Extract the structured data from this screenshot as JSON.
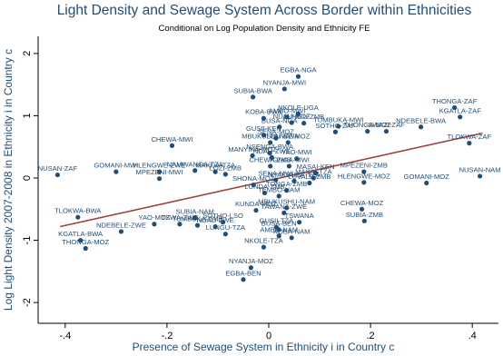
{
  "chart_data": {
    "type": "scatter",
    "title": "Light Density and Sewage System Across Border within Ethnicities",
    "subtitle": "Conditional on Log Population Density and Ethnicity FE",
    "xlabel": "Presence of Sewage System in Ethnicity i in Country c",
    "ylabel": "Log Light Density 2007-2008 in Ethnicity i in Country c",
    "xlim": [
      -0.43,
      0.43
    ],
    "ylim": [
      -2.1,
      2.1
    ],
    "xticks": [
      -0.4,
      -0.2,
      0,
      0.2,
      0.4
    ],
    "xtick_labels": [
      "-.4",
      "-.2",
      "0",
      ".2",
      ".4"
    ],
    "yticks": [
      -2,
      -1,
      0,
      1,
      2
    ],
    "ytick_labels": [
      "-2",
      "-1",
      "0",
      "1",
      "2"
    ],
    "grid": false,
    "colors": {
      "title": "#1f4e79",
      "points": "#1f4e79",
      "fit_line": "#a0413c"
    },
    "fit_line": {
      "x": [
        -0.41,
        0.42
      ],
      "y": [
        -0.78,
        0.72
      ]
    },
    "points": [
      {
        "label": "EGBA-NGA",
        "x": 0.058,
        "y": 1.63
      },
      {
        "label": "NYANJA-MWI",
        "x": 0.031,
        "y": 1.43
      },
      {
        "label": "SUBIA-BWA",
        "x": -0.031,
        "y": 1.3
      },
      {
        "label": "NKOLE-UGA",
        "x": 0.058,
        "y": 1.03
      },
      {
        "label": "AMBO-MWI",
        "x": 0.036,
        "y": 0.98
      },
      {
        "label": "KOBA-BWA",
        "x": -0.01,
        "y": 0.96
      },
      {
        "label": "LUNGU-ZMB",
        "x": 0.069,
        "y": 0.88
      },
      {
        "label": "NDAU-MOZ",
        "x": 0.045,
        "y": 0.89
      },
      {
        "label": "BUSA-NGA",
        "x": 0.021,
        "y": 0.82
      },
      {
        "label": "TUMBUKA-MWI",
        "x": 0.137,
        "y": 0.83
      },
      {
        "label": "THONGA-MOZ",
        "x": 0.194,
        "y": 0.75
      },
      {
        "label": "SWAZI-ZAF",
        "x": 0.231,
        "y": 0.75
      },
      {
        "label": "SOTHO-ZAF",
        "x": 0.131,
        "y": 0.74
      },
      {
        "label": "NDEBELE-BWA",
        "x": 0.299,
        "y": 0.82
      },
      {
        "label": "THONGA-ZAF",
        "x": 0.365,
        "y": 1.13
      },
      {
        "label": "KGATLA-ZAF",
        "x": 0.376,
        "y": 0.98
      },
      {
        "label": "TLOKWA-ZAF",
        "x": 0.394,
        "y": 0.56
      },
      {
        "label": "GUSII-KEN",
        "x": -0.01,
        "y": 0.69
      },
      {
        "label": "SENA-MOZ",
        "x": 0.014,
        "y": 0.64
      },
      {
        "label": "MBUKUSHU-BWA",
        "x": 0.003,
        "y": 0.57
      },
      {
        "label": "LOMWE-MOZ",
        "x": 0.038,
        "y": 0.57
      },
      {
        "label": "CHEWA-MWI",
        "x": -0.19,
        "y": 0.52
      },
      {
        "label": "NSENGA-BWA",
        "x": 0.002,
        "y": 0.4
      },
      {
        "label": "MANYIKA-MOZ",
        "x": -0.032,
        "y": 0.36
      },
      {
        "label": "NDAU-ZWE",
        "x": 0.006,
        "y": 0.33
      },
      {
        "label": "YAO-MWI",
        "x": 0.055,
        "y": 0.31
      },
      {
        "label": "NUSAN-ZAF",
        "x": -0.415,
        "y": 0.05
      },
      {
        "label": "GOMANI-MWI",
        "x": -0.3,
        "y": 0.1
      },
      {
        "label": "HLENGWE-ZWE",
        "x": -0.215,
        "y": 0.1
      },
      {
        "label": "NAMWANGA-TZA",
        "x": -0.145,
        "y": 0.12
      },
      {
        "label": "MAKUA-TZA",
        "x": -0.105,
        "y": 0.1
      },
      {
        "label": "LOZI-ZMB",
        "x": -0.085,
        "y": 0.06
      },
      {
        "label": "CHEWA-ZMB",
        "x": 0.003,
        "y": 0.19
      },
      {
        "label": "TONGA-MWI",
        "x": 0.04,
        "y": 0.19
      },
      {
        "label": "MPEZENI-MWI",
        "x": -0.215,
        "y": -0.01
      },
      {
        "label": "MPEZENI-ZMB",
        "x": 0.187,
        "y": 0.1
      },
      {
        "label": "NUSAN-NAM",
        "x": 0.415,
        "y": 0.03
      },
      {
        "label": "GOMANI-MOZ",
        "x": 0.31,
        "y": -0.08
      },
      {
        "label": "HLENGWE-MOZ",
        "x": 0.187,
        "y": -0.07
      },
      {
        "label": "MASAI-KEN",
        "x": 0.092,
        "y": 0.08
      },
      {
        "label": "MASAI-TZA",
        "x": 0.088,
        "y": 0.0
      },
      {
        "label": "SENA-MWI",
        "x": 0.014,
        "y": -0.03
      },
      {
        "label": "NYAKYUSA-TZA",
        "x": 0.05,
        "y": -0.05
      },
      {
        "label": "SHONA-MOZ",
        "x": -0.03,
        "y": -0.11
      },
      {
        "label": "LUVALE-ZMB",
        "x": 0.08,
        "y": -0.08
      },
      {
        "label": "TONGA-ZMB",
        "x": 0.035,
        "y": -0.2
      },
      {
        "label": "LUNDA-ZMB",
        "x": -0.008,
        "y": -0.24
      },
      {
        "label": "TEMBO-NAM",
        "x": 0.02,
        "y": -0.29
      },
      {
        "label": "KUNDA-MOZ",
        "x": -0.025,
        "y": -0.52
      },
      {
        "label": "MBUKUSHU-NAM",
        "x": 0.035,
        "y": -0.48
      },
      {
        "label": "TAWANA-ZWE",
        "x": 0.03,
        "y": -0.56
      },
      {
        "label": "CHEWA-MOZ",
        "x": 0.183,
        "y": -0.5
      },
      {
        "label": "SUBIA-ZMB",
        "x": 0.188,
        "y": -0.69
      },
      {
        "label": "SUBIA-NAM",
        "x": -0.145,
        "y": -0.64
      },
      {
        "label": "YAO-MOZ",
        "x": -0.225,
        "y": -0.74
      },
      {
        "label": "TSWA-ZWE",
        "x": -0.175,
        "y": -0.74
      },
      {
        "label": "SOTHO-LSO",
        "x": -0.09,
        "y": -0.71
      },
      {
        "label": "TUMBUKA-ZMB",
        "x": -0.14,
        "y": -0.76
      },
      {
        "label": "NDAU-ZWE",
        "x": -0.105,
        "y": -0.78
      },
      {
        "label": "GUSII-TZA",
        "x": 0.015,
        "y": -0.79
      },
      {
        "label": "TSWANA",
        "x": 0.06,
        "y": -0.71
      },
      {
        "label": "BUSA-BEN",
        "x": 0.02,
        "y": -0.83
      },
      {
        "label": "LUNGU-TZA",
        "x": -0.085,
        "y": -0.9
      },
      {
        "label": "AMBO-NAM",
        "x": 0.02,
        "y": -0.93
      },
      {
        "label": "KOBA-NAM",
        "x": 0.045,
        "y": -0.96
      },
      {
        "label": "NDEBELE-ZWE",
        "x": -0.29,
        "y": -0.86
      },
      {
        "label": "TLOKWA-BWA",
        "x": -0.375,
        "y": -0.63
      },
      {
        "label": "KGATLA-BWA",
        "x": -0.37,
        "y": -1.0
      },
      {
        "label": "THONGA-MOZ",
        "x": -0.36,
        "y": -1.13
      },
      {
        "label": "NKOLE-TZA",
        "x": -0.01,
        "y": -1.11
      },
      {
        "label": "NYANJA-MOZ",
        "x": -0.035,
        "y": -1.44
      },
      {
        "label": "EGBA-BEN",
        "x": -0.05,
        "y": -1.63
      }
    ]
  }
}
